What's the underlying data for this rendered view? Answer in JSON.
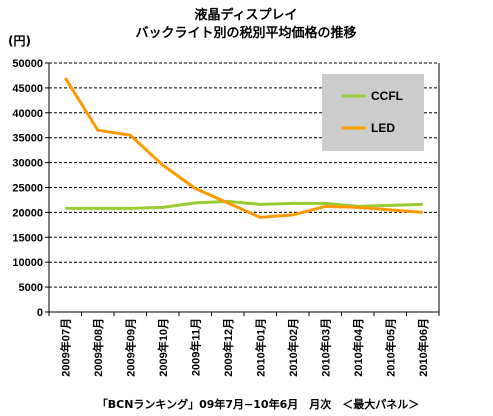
{
  "chart_data": {
    "type": "line",
    "title": "液晶ディスプレイ",
    "subtitle": "バックライト別の税別平均価格の推移",
    "ylabel": "(円)",
    "source": "「BCNランキング」09年7月−10年6月　月次　＜最大パネル＞",
    "categories": [
      "2009年07月",
      "2009年08月",
      "2009年09月",
      "2009年10月",
      "2009年11月",
      "2009年12月",
      "2010年01月",
      "2010年02月",
      "2010年03月",
      "2010年04月",
      "2010年05月",
      "2010年06月"
    ],
    "ylim": [
      0,
      50000
    ],
    "yticks": [
      "0",
      "5000",
      "10000",
      "15000",
      "20000",
      "25000",
      "30000",
      "35000",
      "40000",
      "45000",
      "50000"
    ],
    "grid": true,
    "legend_position": "top-right",
    "series": [
      {
        "name": "CCFL",
        "color": "#99cc33",
        "values": [
          20800,
          20800,
          20800,
          21000,
          21900,
          22200,
          21600,
          21800,
          21800,
          21200,
          21400,
          21600
        ]
      },
      {
        "name": "LED",
        "color": "#ff9900",
        "values": [
          47000,
          36500,
          35500,
          29500,
          24800,
          21900,
          19000,
          19500,
          21200,
          21000,
          20500,
          20000
        ]
      }
    ]
  }
}
